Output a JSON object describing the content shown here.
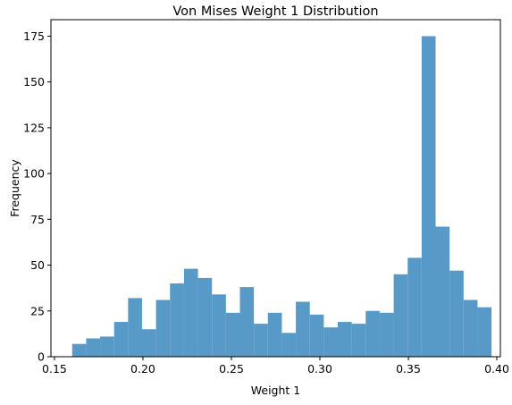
{
  "chart_data": {
    "type": "bar",
    "title": "Von Mises Weight 1 Distribution",
    "xlabel": "Weight 1",
    "ylabel": "Frequency",
    "xlim": [
      0.148,
      0.402
    ],
    "ylim": [
      0,
      184
    ],
    "xticks": [
      0.15,
      0.2,
      0.25,
      0.3,
      0.35,
      0.4
    ],
    "xtick_labels": [
      "0.15",
      "0.20",
      "0.25",
      "0.30",
      "0.35",
      "0.40"
    ],
    "yticks": [
      0,
      25,
      50,
      75,
      100,
      125,
      150,
      175
    ],
    "ytick_labels": [
      "0",
      "25",
      "50",
      "75",
      "100",
      "125",
      "150",
      "175"
    ],
    "grid": false,
    "bar_color": "#5799c7",
    "bins": [
      {
        "x0": 0.16,
        "x1": 0.1679,
        "count": 7
      },
      {
        "x0": 0.1679,
        "x1": 0.1758,
        "count": 10
      },
      {
        "x0": 0.1758,
        "x1": 0.1837,
        "count": 11
      },
      {
        "x0": 0.1837,
        "x1": 0.1916,
        "count": 19
      },
      {
        "x0": 0.1916,
        "x1": 0.1995,
        "count": 32
      },
      {
        "x0": 0.1995,
        "x1": 0.2074,
        "count": 15
      },
      {
        "x0": 0.2074,
        "x1": 0.2153,
        "count": 31
      },
      {
        "x0": 0.2153,
        "x1": 0.2232,
        "count": 40
      },
      {
        "x0": 0.2232,
        "x1": 0.2311,
        "count": 48
      },
      {
        "x0": 0.2311,
        "x1": 0.239,
        "count": 43
      },
      {
        "x0": 0.239,
        "x1": 0.2469,
        "count": 34
      },
      {
        "x0": 0.2469,
        "x1": 0.2548,
        "count": 24
      },
      {
        "x0": 0.2548,
        "x1": 0.2627,
        "count": 38
      },
      {
        "x0": 0.2627,
        "x1": 0.2706,
        "count": 18
      },
      {
        "x0": 0.2706,
        "x1": 0.2785,
        "count": 24
      },
      {
        "x0": 0.2785,
        "x1": 0.2864,
        "count": 13
      },
      {
        "x0": 0.2864,
        "x1": 0.2943,
        "count": 30
      },
      {
        "x0": 0.2943,
        "x1": 0.3022,
        "count": 23
      },
      {
        "x0": 0.3022,
        "x1": 0.3101,
        "count": 16
      },
      {
        "x0": 0.3101,
        "x1": 0.318,
        "count": 19
      },
      {
        "x0": 0.318,
        "x1": 0.3259,
        "count": 18
      },
      {
        "x0": 0.3259,
        "x1": 0.3338,
        "count": 25
      },
      {
        "x0": 0.3338,
        "x1": 0.3417,
        "count": 24
      },
      {
        "x0": 0.3417,
        "x1": 0.3496,
        "count": 45
      },
      {
        "x0": 0.3496,
        "x1": 0.3575,
        "count": 54
      },
      {
        "x0": 0.3575,
        "x1": 0.3654,
        "count": 175
      },
      {
        "x0": 0.3654,
        "x1": 0.3733,
        "count": 71
      },
      {
        "x0": 0.3733,
        "x1": 0.3812,
        "count": 47
      },
      {
        "x0": 0.3812,
        "x1": 0.3891,
        "count": 31
      },
      {
        "x0": 0.3891,
        "x1": 0.397,
        "count": 27
      }
    ]
  }
}
